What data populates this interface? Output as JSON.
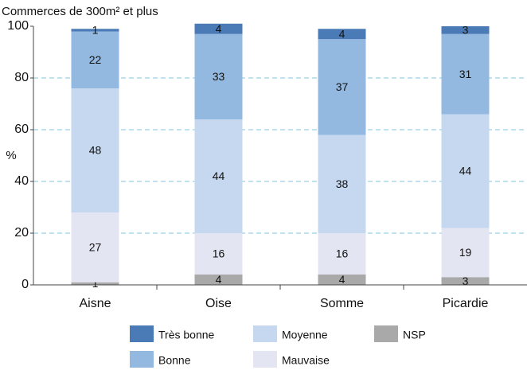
{
  "chart_data": {
    "type": "stacked_bar",
    "title": "Commerces de 300m² et plus",
    "ylabel": "%",
    "categories": [
      "Aisne",
      "Oise",
      "Somme",
      "Picardie"
    ],
    "series": [
      {
        "name": "NSP",
        "color": "#a9a9a9",
        "values": [
          1,
          4,
          4,
          3
        ]
      },
      {
        "name": "Mauvaise",
        "color": "#e4e5f2",
        "values": [
          27,
          16,
          16,
          19
        ]
      },
      {
        "name": "Moyenne",
        "color": "#c6d8ef",
        "values": [
          48,
          44,
          38,
          44
        ]
      },
      {
        "name": "Bonne",
        "color": "#94b9e1",
        "values": [
          22,
          33,
          37,
          31
        ]
      },
      {
        "name": "Très bonne",
        "color": "#4b7bb6",
        "values": [
          1,
          4,
          4,
          3
        ]
      }
    ],
    "ylim": [
      0,
      100
    ],
    "yticks": [
      0,
      20,
      40,
      60,
      80,
      100
    ],
    "grid": true
  }
}
